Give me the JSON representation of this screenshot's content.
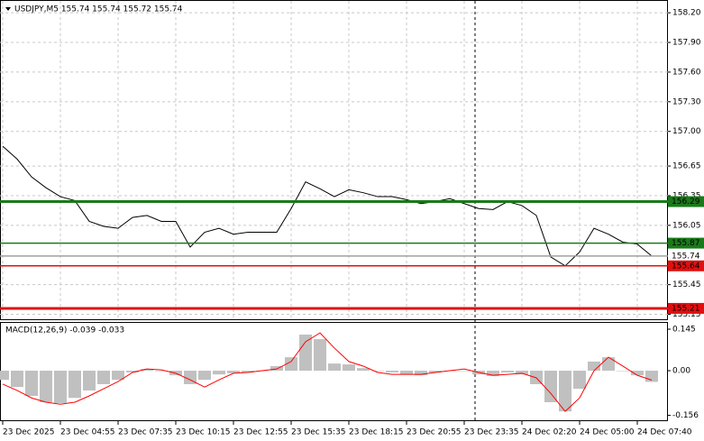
{
  "chart_data": [
    {
      "type": "line",
      "title": "USDJPY,M5  155.74 155.74 155.72 155.74",
      "x": [
        0,
        8,
        16,
        24,
        32,
        40,
        48,
        56,
        64,
        72,
        80,
        88,
        96,
        104,
        112,
        120,
        128,
        136,
        144,
        152,
        160,
        168,
        176,
        184,
        192,
        200,
        208,
        216,
        224,
        232,
        240,
        248,
        256,
        264,
        272,
        280,
        288,
        296,
        304,
        312,
        320,
        328,
        336,
        344,
        352,
        360
      ],
      "xlim": [
        -1.5,
        369
      ],
      "xticks": [
        {
          "value": 0,
          "label": "23 Dec 2025"
        },
        {
          "value": 32,
          "label": "23 Dec 04:55"
        },
        {
          "value": 64,
          "label": "23 Dec 07:35"
        },
        {
          "value": 96,
          "label": "23 Dec 10:15"
        },
        {
          "value": 128,
          "label": "23 Dec 12:55"
        },
        {
          "value": 160,
          "label": "23 Dec 15:35"
        },
        {
          "value": 192,
          "label": "23 Dec 18:15"
        },
        {
          "value": 224,
          "label": "23 Dec 20:55"
        },
        {
          "value": 256,
          "label": "23 Dec 23:35"
        },
        {
          "value": 288,
          "label": "24 Dec 02:20"
        },
        {
          "value": 320,
          "label": "24 Dec 05:00"
        },
        {
          "value": 352,
          "label": "24 Dec 07:40"
        }
      ],
      "series": [
        {
          "color": "#000000",
          "values": [
            156.85,
            156.72,
            156.54,
            156.43,
            156.34,
            156.3,
            156.09,
            156.04,
            156.02,
            156.13,
            156.15,
            156.09,
            156.09,
            155.83,
            155.98,
            156.02,
            155.96,
            155.98,
            155.98,
            155.98,
            156.22,
            156.49,
            156.42,
            156.34,
            156.41,
            156.38,
            156.34,
            156.34,
            156.31,
            156.27,
            156.29,
            156.32,
            156.27,
            156.22,
            156.21,
            156.29,
            156.25,
            156.15,
            155.73,
            155.64,
            155.78,
            156.02,
            155.96,
            155.88,
            155.86,
            155.74
          ]
        }
      ],
      "ylim": [
        155.1,
        158.32
      ],
      "yticks": [
        {
          "value": 158.2,
          "label": "158.20"
        },
        {
          "value": 157.9,
          "label": "157.90"
        },
        {
          "value": 157.6,
          "label": "157.60"
        },
        {
          "value": 157.3,
          "label": "157.30"
        },
        {
          "value": 157,
          "label": "157.00"
        },
        156.65,
        156.35,
        156.05,
        155.45,
        155.15
      ],
      "grid": true,
      "period_separator": 262,
      "levels": [
        {
          "value": 156.29,
          "color": "#1a7a1a",
          "thick": true
        },
        {
          "value": 155.87,
          "color": "#1a7a1a",
          "thick": false
        },
        {
          "value": 155.74,
          "color": "#a0a0a0",
          "thick": false
        },
        {
          "value": 155.64,
          "color": "#e01010",
          "thick": false
        },
        {
          "value": 155.21,
          "color": "#e01010",
          "thick": true
        }
      ]
    },
    {
      "type": "macd",
      "title": "MACD(12,26,9) -0.039 -0.033",
      "x": [
        0,
        8,
        16,
        24,
        32,
        40,
        48,
        56,
        64,
        72,
        80,
        88,
        96,
        104,
        112,
        120,
        128,
        136,
        144,
        152,
        160,
        168,
        176,
        184,
        192,
        200,
        208,
        216,
        224,
        232,
        240,
        248,
        256,
        264,
        272,
        280,
        288,
        296,
        304,
        312,
        320,
        328,
        336,
        344,
        352,
        360
      ],
      "xlim": [
        -1.5,
        369
      ],
      "series": [
        {
          "type": "bar",
          "color": "#c0c0c0",
          "values": [
            -0.032,
            -0.057,
            -0.088,
            -0.11,
            -0.113,
            -0.095,
            -0.069,
            -0.047,
            -0.032,
            -0.006,
            0.006,
            0,
            -0.016,
            -0.047,
            -0.032,
            -0.013,
            -0.009,
            -0.006,
            0,
            0.016,
            0.047,
            0.126,
            0.11,
            0.025,
            0.022,
            0.009,
            0,
            -0.006,
            -0.013,
            -0.016,
            -0.006,
            0,
            0,
            -0.013,
            -0.019,
            -0.006,
            -0.013,
            -0.047,
            -0.11,
            -0.142,
            -0.063,
            0.032,
            0.047,
            0,
            -0.016,
            -0.039
          ]
        },
        {
          "type": "line",
          "color": "#ff0000",
          "values": [
            -0.047,
            -0.069,
            -0.095,
            -0.11,
            -0.117,
            -0.11,
            -0.088,
            -0.063,
            -0.038,
            -0.006,
            0.006,
            0.003,
            -0.009,
            -0.032,
            -0.057,
            -0.032,
            -0.009,
            -0.006,
            0,
            0.006,
            0.032,
            0.101,
            0.132,
            0.079,
            0.032,
            0.016,
            -0.006,
            -0.013,
            -0.013,
            -0.013,
            -0.006,
            0,
            0.006,
            -0.006,
            -0.016,
            -0.013,
            -0.009,
            -0.025,
            -0.079,
            -0.142,
            -0.095,
            0,
            0.047,
            0.016,
            -0.016,
            -0.033
          ]
        }
      ],
      "ylim": [
        -0.173,
        0.167
      ],
      "yticks": [
        0.145,
        {
          "value": 0,
          "label": "0.00"
        },
        -0.156
      ]
    }
  ]
}
